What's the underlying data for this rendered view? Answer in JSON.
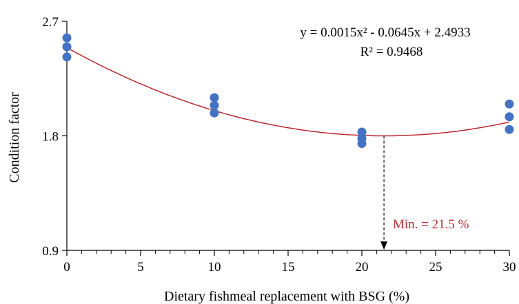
{
  "chart_data": {
    "type": "scatter",
    "xlabel": "Dietary fishmeal replacement with BSG (%)",
    "ylabel": "Condition factor",
    "xlim": [
      0,
      30
    ],
    "ylim": [
      0.9,
      2.7
    ],
    "x_ticks": [
      "0",
      "5",
      "10",
      "15",
      "20",
      "25",
      "30"
    ],
    "y_ticks": [
      "0.9",
      "1.8",
      "2.7"
    ],
    "grid": false,
    "points": [
      {
        "x": 0,
        "y": 2.57
      },
      {
        "x": 0,
        "y": 2.5
      },
      {
        "x": 0,
        "y": 2.42
      },
      {
        "x": 10,
        "y": 2.1
      },
      {
        "x": 10,
        "y": 2.04
      },
      {
        "x": 10,
        "y": 1.98
      },
      {
        "x": 20,
        "y": 1.83
      },
      {
        "x": 20,
        "y": 1.78
      },
      {
        "x": 20,
        "y": 1.74
      },
      {
        "x": 30,
        "y": 2.05
      },
      {
        "x": 30,
        "y": 1.95
      },
      {
        "x": 30,
        "y": 1.85
      }
    ],
    "trendline": {
      "type": "polynomial",
      "coefficients": [
        0.0015,
        -0.0645,
        2.4933
      ],
      "equation": "y = 0.0015x² - 0.0645x + 2.4933",
      "r_squared": "R² = 0.9468"
    },
    "annotation": {
      "text": "Min. = 21.5 %",
      "x": 21.5
    },
    "colors": {
      "points": "#4472c4",
      "trendline": "#c0272d",
      "annotation_text": "#c0272d"
    }
  }
}
